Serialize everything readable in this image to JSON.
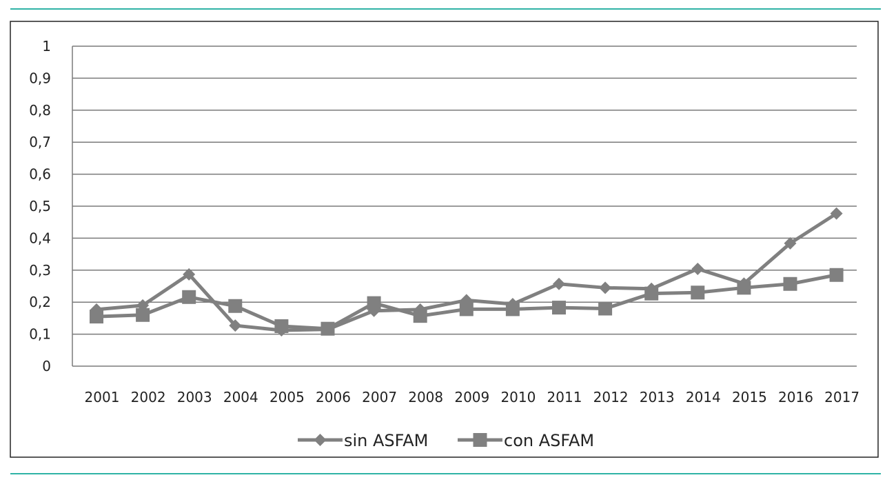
{
  "colors": {
    "rule": "#2fb3a6",
    "frame": "#222222",
    "grid": "#7a7a7a",
    "series": "#808080"
  },
  "chart_data": {
    "type": "line",
    "title": "",
    "xlabel": "",
    "ylabel": "",
    "ylim": [
      0,
      1
    ],
    "yticks": [
      "0",
      "0,1",
      "0,2",
      "0,3",
      "0,4",
      "0,5",
      "0,6",
      "0,7",
      "0,8",
      "0,9",
      "1"
    ],
    "categories": [
      "2001",
      "2002",
      "2003",
      "2004",
      "2005",
      "2006",
      "2007",
      "2008",
      "2009",
      "2010",
      "2011",
      "2012",
      "2013",
      "2014",
      "2015",
      "2016",
      "2017"
    ],
    "grid": true,
    "legend_position": "bottom",
    "series": [
      {
        "name": "sin ASFAM",
        "marker": "diamond",
        "values": [
          0.177,
          0.19,
          0.287,
          0.127,
          0.112,
          0.115,
          0.173,
          0.177,
          0.206,
          0.194,
          0.257,
          0.245,
          0.242,
          0.304,
          0.258,
          0.384,
          0.477
        ]
      },
      {
        "name": "con ASFAM",
        "marker": "square",
        "values": [
          0.155,
          0.16,
          0.216,
          0.188,
          0.125,
          0.117,
          0.197,
          0.157,
          0.178,
          0.178,
          0.183,
          0.18,
          0.227,
          0.23,
          0.245,
          0.257,
          0.285
        ]
      }
    ]
  }
}
